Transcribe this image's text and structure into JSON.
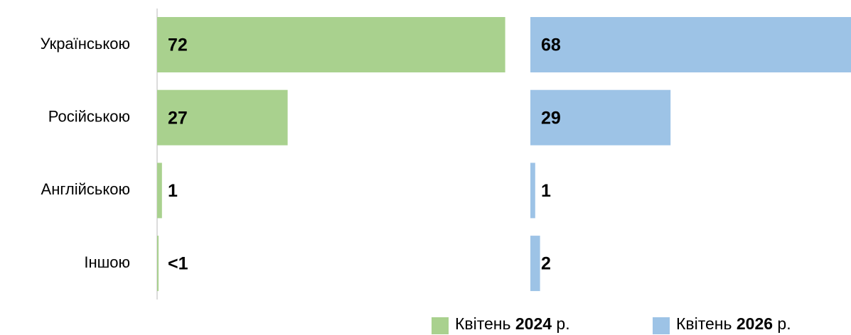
{
  "chart_data": {
    "type": "bar",
    "orientation": "horizontal",
    "categories": [
      "Українською",
      "Російською",
      "Англійською",
      "Іншою"
    ],
    "series": [
      {
        "name": "Квітень 2024 р.",
        "color": "#a9d18e",
        "values": [
          72,
          27,
          1,
          0.3
        ],
        "value_labels": [
          "72",
          "27",
          "1",
          "<1"
        ]
      },
      {
        "name": "Квітень 2026 р.",
        "color": "#9dc3e6",
        "values": [
          68,
          29,
          1,
          2
        ]
      }
    ],
    "xlim": [
      0,
      75
    ]
  }
}
